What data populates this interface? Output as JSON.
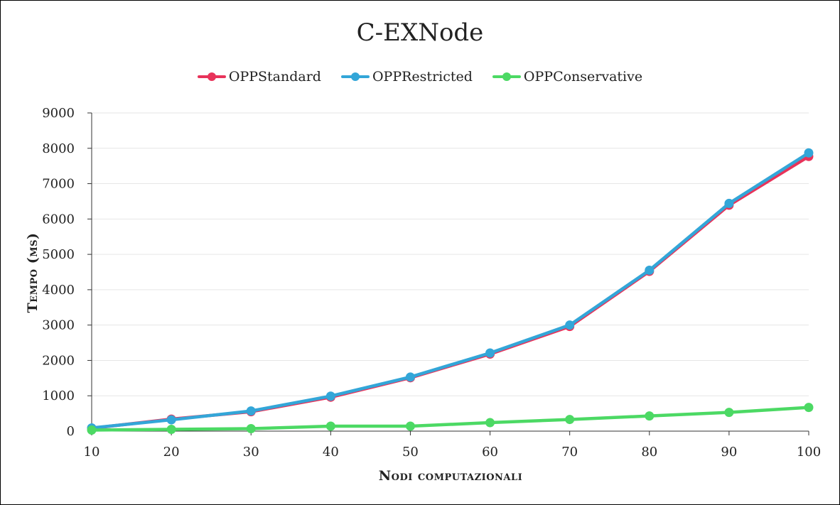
{
  "chart_data": {
    "type": "line",
    "title": "C-EXNode",
    "xlabel": "Nodi computazionali",
    "ylabel": "Tempo (ms)",
    "x": [
      10,
      20,
      30,
      40,
      50,
      60,
      70,
      80,
      90,
      100
    ],
    "xlim": [
      10,
      100
    ],
    "ylim": [
      0,
      9000
    ],
    "yticks": [
      0,
      1000,
      2000,
      3000,
      4000,
      5000,
      6000,
      7000,
      8000,
      9000
    ],
    "grid": true,
    "legend_position": "top",
    "series": [
      {
        "name": "OPPStandard",
        "color": "#e8335a",
        "values": [
          80,
          340,
          550,
          960,
          1510,
          2180,
          2960,
          4520,
          6390,
          7770
        ]
      },
      {
        "name": "OPPRestricted",
        "color": "#33a6d8",
        "values": [
          90,
          320,
          570,
          990,
          1530,
          2210,
          3000,
          4550,
          6440,
          7870
        ]
      },
      {
        "name": "OPPConservative",
        "color": "#4cd964",
        "values": [
          30,
          50,
          70,
          140,
          140,
          240,
          330,
          430,
          530,
          670
        ]
      }
    ]
  }
}
